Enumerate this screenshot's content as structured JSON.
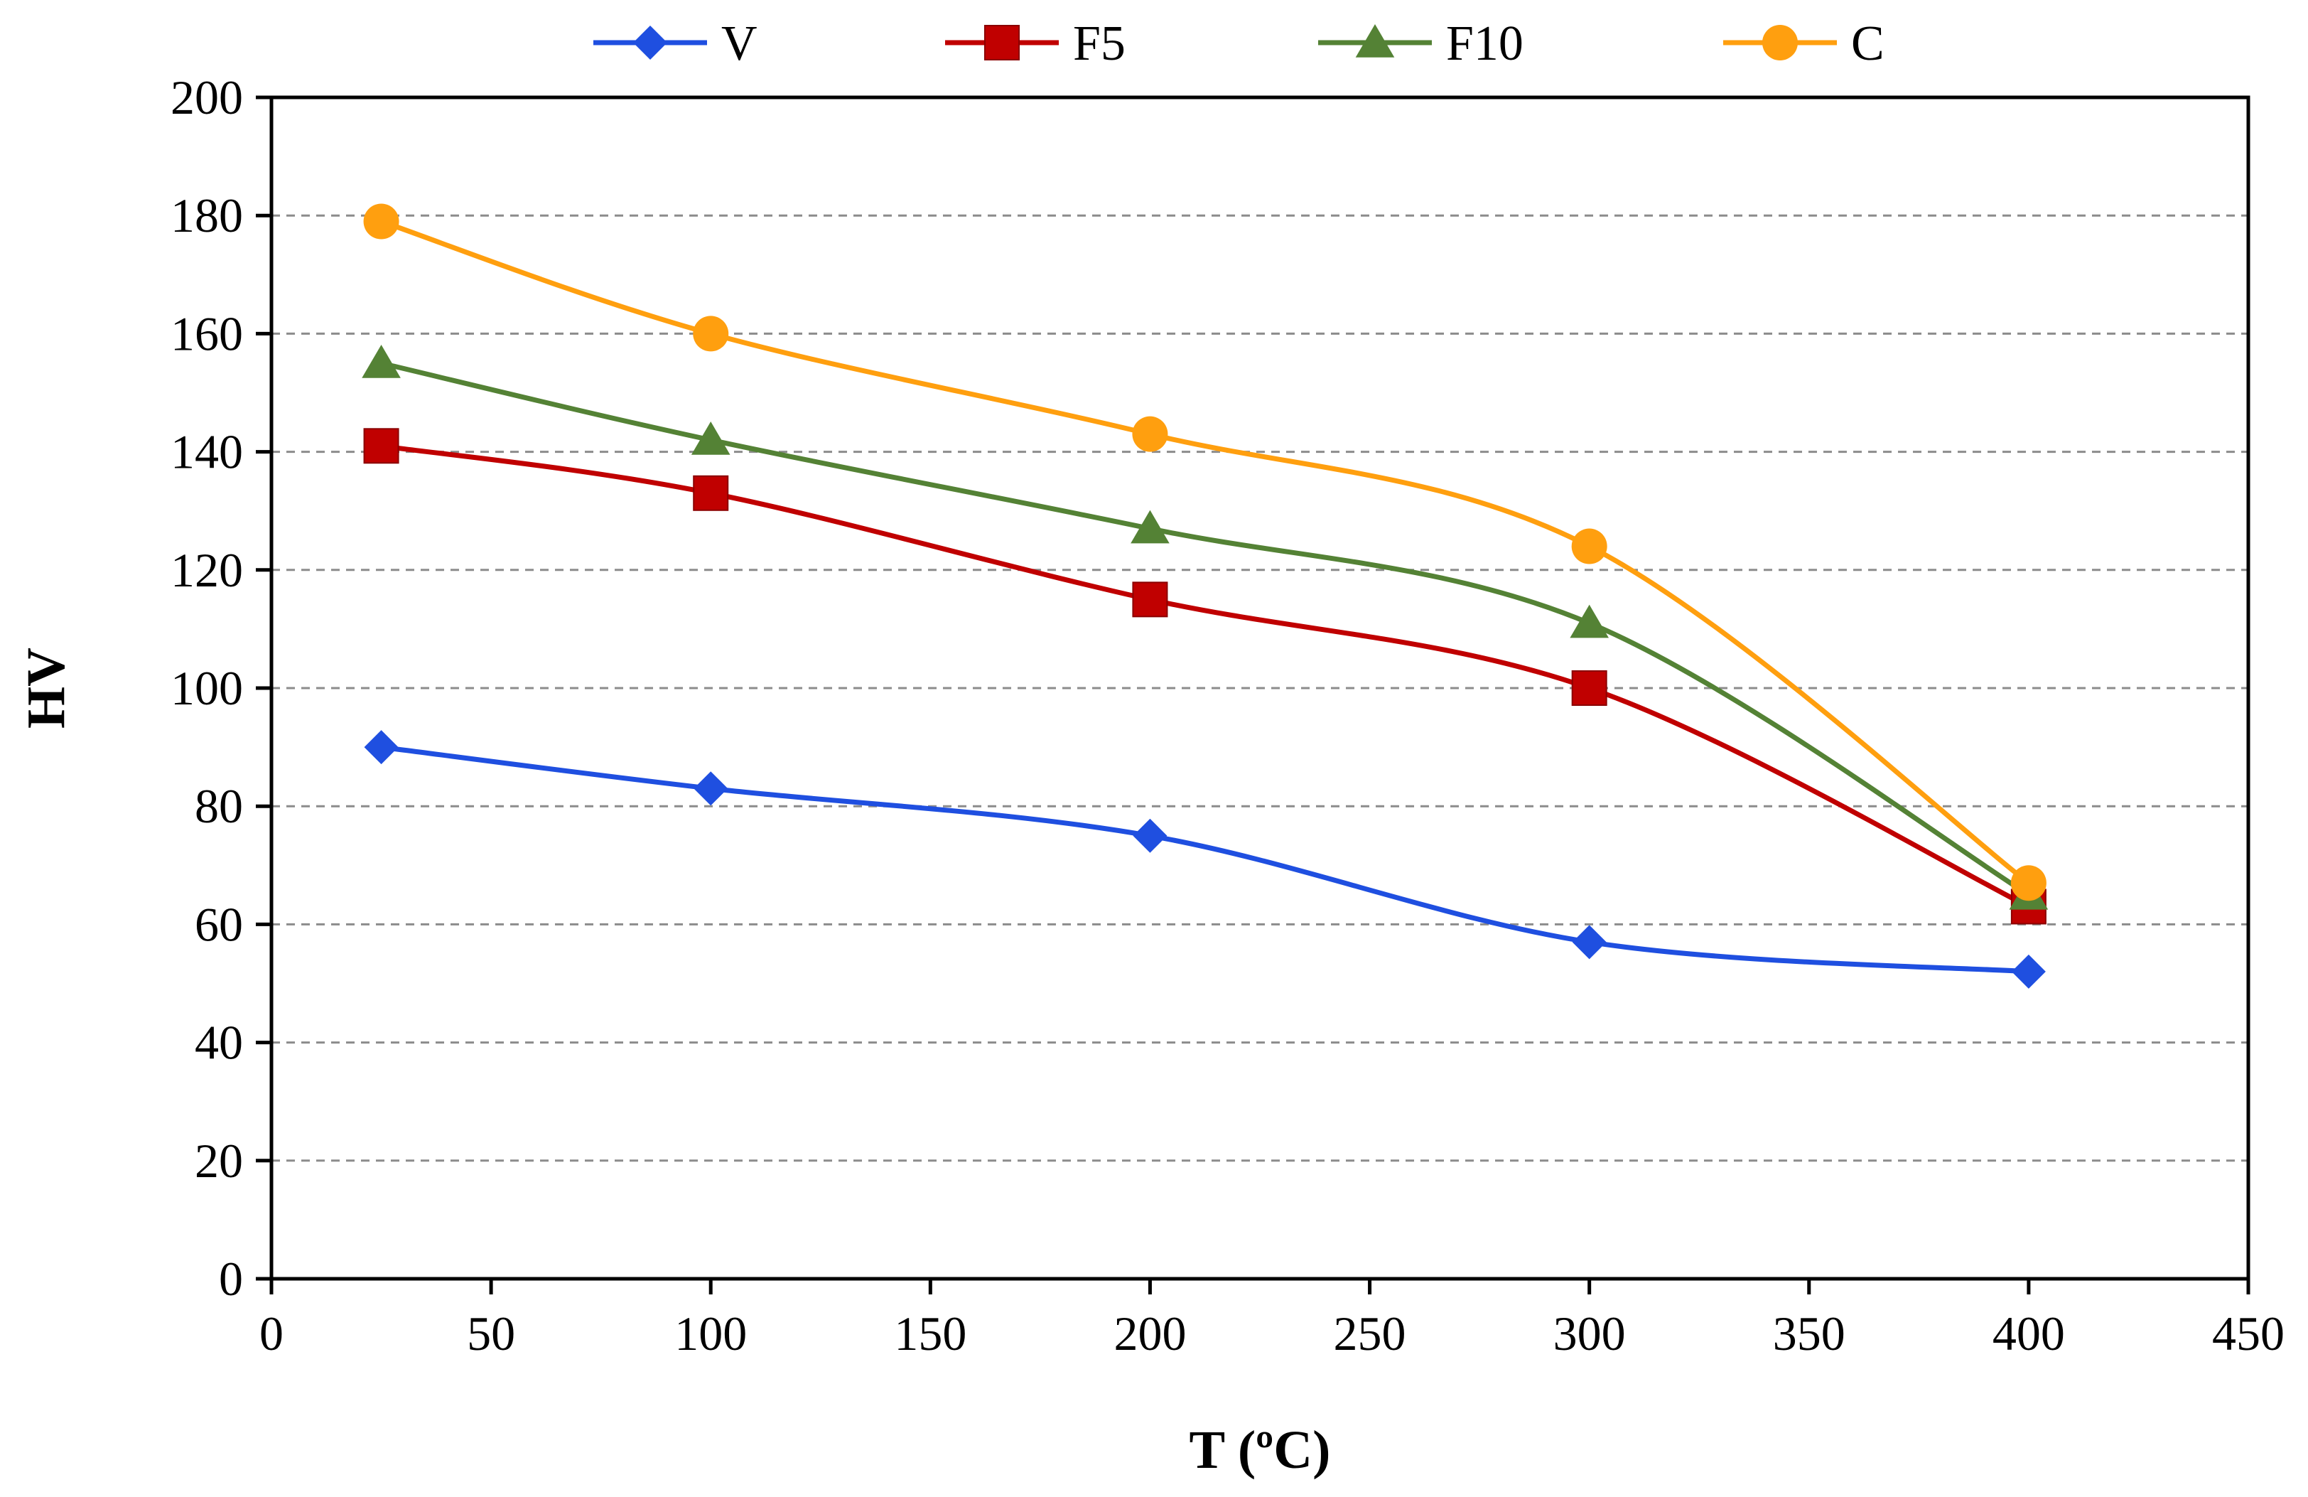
{
  "chart_data": {
    "type": "line",
    "title": "",
    "xlabel": "T (ºC)",
    "ylabel": "HV",
    "xlim": [
      0,
      450
    ],
    "ylim": [
      0,
      200
    ],
    "x_ticks": [
      "0",
      "50",
      "100",
      "150",
      "200",
      "250",
      "300",
      "350",
      "400",
      "450"
    ],
    "y_ticks": [
      "0",
      "20",
      "40",
      "60",
      "80",
      "100",
      "120",
      "140",
      "160",
      "180",
      "200"
    ],
    "grid": "horizontal dashed",
    "legend_position": "top",
    "x": [
      25,
      100,
      200,
      300,
      400
    ],
    "series": [
      {
        "name": "V",
        "values": [
          90,
          83,
          75,
          57,
          52
        ],
        "color": "#1f4fe0",
        "marker": "diamond"
      },
      {
        "name": "F5",
        "values": [
          141,
          133,
          115,
          100,
          63
        ],
        "color": "#c00000",
        "marker": "square"
      },
      {
        "name": "F10",
        "values": [
          155,
          142,
          127,
          111,
          65
        ],
        "color": "#548235",
        "marker": "triangle"
      },
      {
        "name": "C",
        "values": [
          179,
          160,
          143,
          124,
          67
        ],
        "color": "#ff9f0f",
        "marker": "circle"
      }
    ]
  }
}
